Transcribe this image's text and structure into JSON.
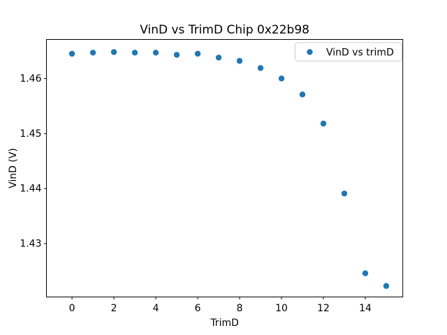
{
  "chart_data": {
    "type": "scatter",
    "title": "VinD vs TrimD Chip 0x22b98",
    "xlabel": "TrimD",
    "ylabel": "VinD (V)",
    "legend": {
      "label": "VinD vs trimD",
      "position": "upper right"
    },
    "marker_color": "#1f77b4",
    "spine_color": "#000000",
    "legend_border_color": "#cccccc",
    "x": [
      0,
      1,
      2,
      3,
      4,
      5,
      6,
      7,
      8,
      9,
      10,
      11,
      12,
      13,
      14,
      15
    ],
    "y": [
      1.4645,
      1.4647,
      1.4648,
      1.4647,
      1.4647,
      1.4643,
      1.4645,
      1.4638,
      1.4632,
      1.4619,
      1.46,
      1.4571,
      1.4518,
      1.4391,
      1.4246,
      1.4223
    ],
    "xticks": [
      0,
      2,
      4,
      6,
      8,
      10,
      12,
      14
    ],
    "yticks": [
      1.43,
      1.44,
      1.45,
      1.46
    ],
    "ytick_labels": [
      "1.43",
      "1.44",
      "1.45",
      "1.46"
    ],
    "xlim": [
      -1.22,
      15.79
    ],
    "ylim": [
      1.4203,
      1.4671
    ],
    "grid": false
  }
}
